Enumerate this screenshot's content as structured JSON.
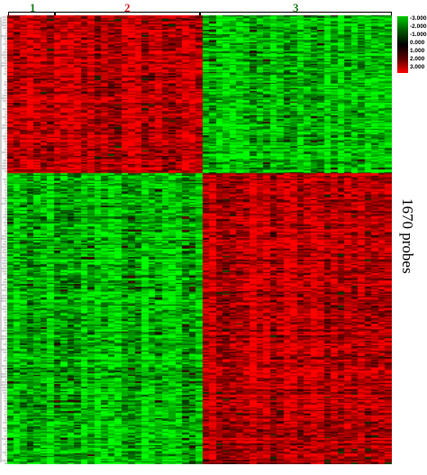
{
  "chart_data": {
    "type": "heatmap",
    "title": "",
    "column_clusters": [
      {
        "label": "1",
        "color": "#1a7a1a",
        "columns": 7
      },
      {
        "label": "2",
        "color": "#d0202a",
        "columns": 22
      },
      {
        "label": "3",
        "color": "#1a7a1a",
        "columns": 28
      }
    ],
    "row_label": "1670 probes",
    "row_count": 1670,
    "row_blocks": [
      {
        "name": "upper",
        "fraction": 0.35,
        "pattern": [
          "red",
          "red",
          "green"
        ]
      },
      {
        "name": "lower",
        "fraction": 0.65,
        "pattern": [
          "green",
          "green",
          "red"
        ]
      }
    ],
    "color_scale": {
      "min": -3.0,
      "max": 3.0,
      "ticks": [
        "-3.000",
        "-2.000",
        "-1.000",
        "0.000",
        "1.000",
        "2.000",
        "3.000"
      ],
      "colors": [
        "#00c800",
        "#005a00",
        "#000000",
        "#5a0000",
        "#ff0000"
      ]
    }
  }
}
